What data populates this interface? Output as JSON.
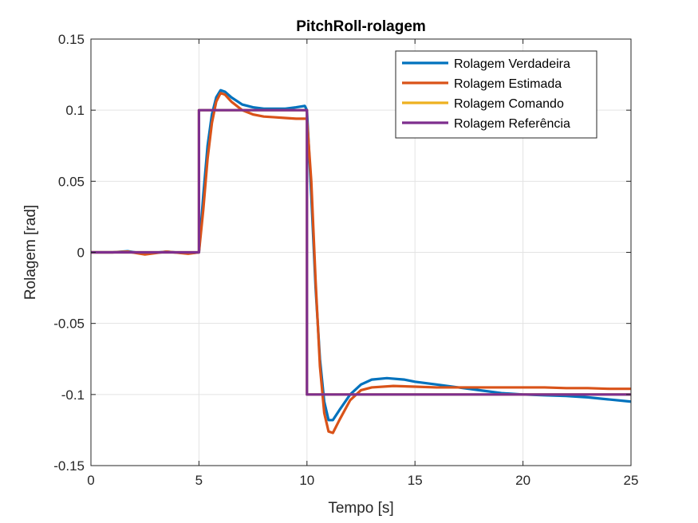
{
  "chart_data": {
    "type": "line",
    "title": "PitchRoll-rolagem",
    "xlabel": "Tempo [s]",
    "ylabel": "Rolagem [rad]",
    "xlim": [
      0,
      25
    ],
    "ylim": [
      -0.15,
      0.15
    ],
    "xticks": [
      0,
      5,
      10,
      15,
      20,
      25
    ],
    "yticks": [
      -0.15,
      -0.1,
      -0.05,
      0,
      0.05,
      0.1,
      0.15
    ],
    "xtick_labels": [
      "0",
      "5",
      "10",
      "15",
      "20",
      "25"
    ],
    "ytick_labels": [
      "-0.15",
      "-0.1",
      "-0.05",
      "0",
      "0.05",
      "0.1",
      "0.15"
    ],
    "grid": true,
    "legend_position": "top-right",
    "series": [
      {
        "name": "Rolagem Verdadeira",
        "color": "#0072BD",
        "x": [
          0,
          1,
          1.7,
          2.5,
          3.5,
          4.5,
          5.0,
          5.2,
          5.4,
          5.6,
          5.8,
          6.0,
          6.2,
          6.5,
          7.0,
          7.5,
          8.0,
          8.5,
          9.0,
          9.5,
          9.9,
          10.0,
          10.2,
          10.4,
          10.6,
          10.8,
          11.0,
          11.2,
          11.5,
          12.0,
          12.5,
          13.0,
          13.7,
          14.5,
          15.0,
          16.0,
          17.0,
          18.0,
          19.0,
          20.0,
          21.0,
          22.0,
          23.0,
          24.0,
          25.0
        ],
        "y": [
          0,
          0,
          0.0008,
          -0.001,
          0.0005,
          -0.0008,
          0,
          0.04,
          0.075,
          0.097,
          0.109,
          0.114,
          0.113,
          0.109,
          0.104,
          0.102,
          0.101,
          0.101,
          0.101,
          0.102,
          0.103,
          0.1,
          0.04,
          -0.025,
          -0.075,
          -0.105,
          -0.118,
          -0.118,
          -0.111,
          -0.1,
          -0.093,
          -0.0895,
          -0.0885,
          -0.0895,
          -0.091,
          -0.093,
          -0.095,
          -0.097,
          -0.099,
          -0.1,
          -0.1005,
          -0.101,
          -0.102,
          -0.1035,
          -0.105
        ]
      },
      {
        "name": "Rolagem Estimada",
        "color": "#D95319",
        "x": [
          0,
          1,
          1.7,
          2.5,
          3.5,
          4.5,
          5.0,
          5.2,
          5.4,
          5.6,
          5.8,
          6.0,
          6.2,
          6.5,
          7.0,
          7.5,
          8.0,
          8.5,
          9.0,
          9.5,
          10.0,
          10.2,
          10.4,
          10.6,
          10.8,
          11.0,
          11.2,
          11.5,
          12.0,
          12.5,
          13.0,
          14.0,
          15.0,
          16.0,
          17.0,
          18.0,
          19.0,
          20.0,
          21.0,
          22.0,
          23.0,
          24.0,
          25.0
        ],
        "y": [
          0,
          0,
          0.0005,
          -0.0015,
          0.0005,
          -0.001,
          0,
          0.03,
          0.066,
          0.091,
          0.106,
          0.112,
          0.111,
          0.106,
          0.1,
          0.097,
          0.0955,
          0.095,
          0.0945,
          0.094,
          0.094,
          0.05,
          -0.02,
          -0.08,
          -0.113,
          -0.126,
          -0.127,
          -0.118,
          -0.104,
          -0.097,
          -0.095,
          -0.094,
          -0.0945,
          -0.095,
          -0.095,
          -0.095,
          -0.095,
          -0.095,
          -0.095,
          -0.0955,
          -0.0955,
          -0.096,
          -0.096
        ]
      },
      {
        "name": "Rolagem Comando",
        "color": "#EDB120",
        "x": [
          0,
          5,
          5,
          10,
          10,
          25
        ],
        "y": [
          0,
          0,
          0.1,
          0.1,
          -0.1,
          -0.1
        ]
      },
      {
        "name": "Rolagem Referência",
        "color": "#7E2F8E",
        "x": [
          0,
          5,
          5,
          10,
          10,
          25
        ],
        "y": [
          0,
          0,
          0.1,
          0.1,
          -0.1,
          -0.1
        ]
      }
    ]
  }
}
